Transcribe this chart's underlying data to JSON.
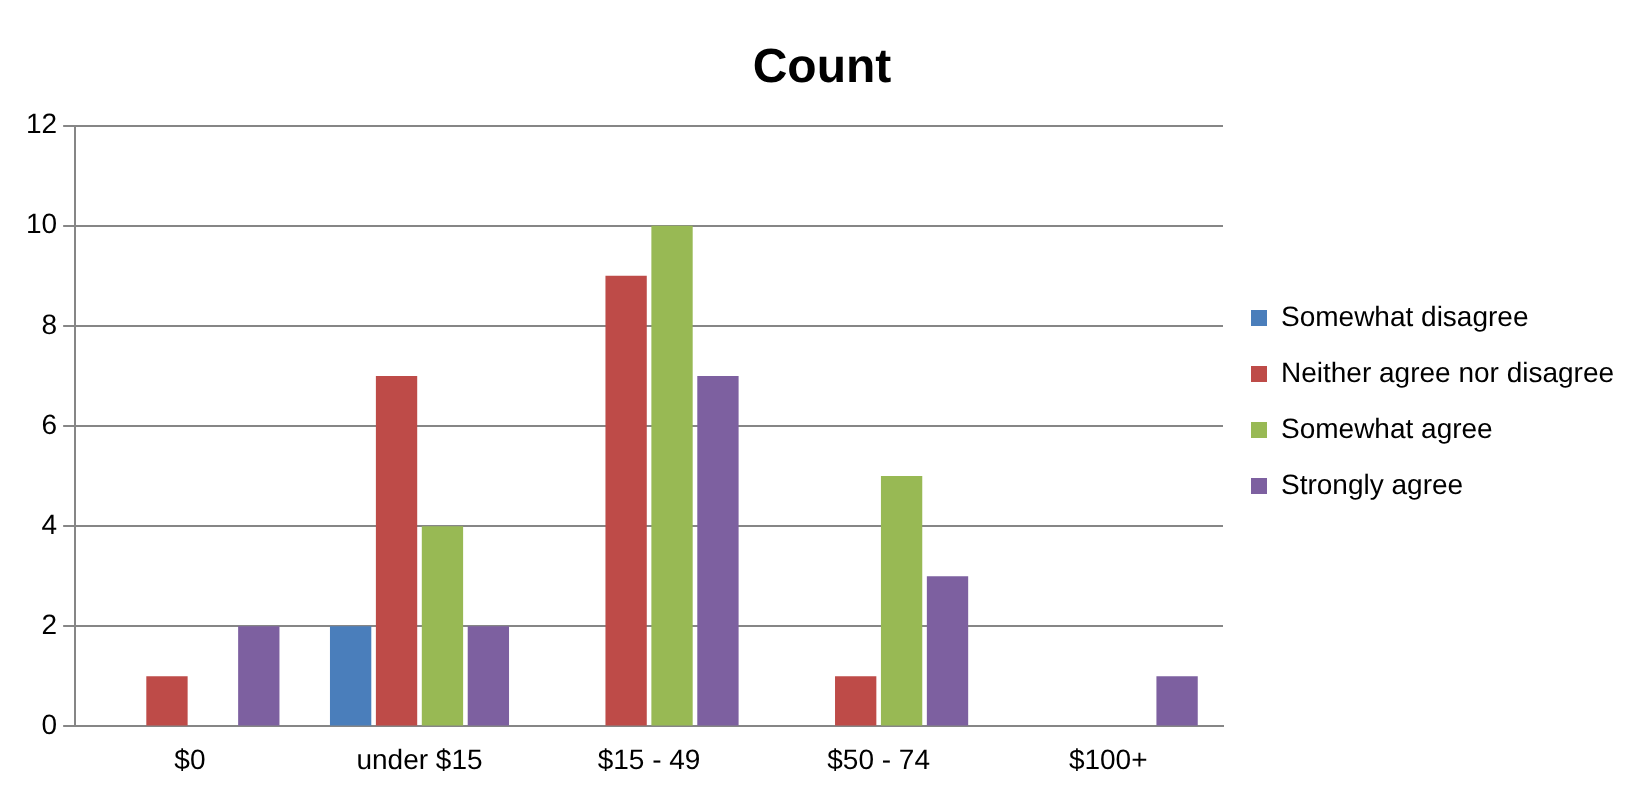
{
  "chart_data": {
    "type": "bar",
    "title": "Count",
    "categories": [
      "$0",
      "under $15",
      "$15 - 49",
      "$50 - 74",
      "$100+"
    ],
    "series": [
      {
        "name": "Somewhat disagree",
        "color": "#4a7ebb",
        "values": [
          0,
          2,
          0,
          0,
          0
        ]
      },
      {
        "name": "Neither agree nor disagree",
        "color": "#be4b48",
        "values": [
          1,
          7,
          9,
          1,
          0
        ]
      },
      {
        "name": "Somewhat agree",
        "color": "#98b954",
        "values": [
          0,
          4,
          10,
          5,
          0
        ]
      },
      {
        "name": "Strongly agree",
        "color": "#7d60a0",
        "values": [
          2,
          2,
          7,
          3,
          1
        ]
      }
    ],
    "ylim": [
      0,
      12
    ],
    "yticks": [
      0,
      2,
      4,
      6,
      8,
      10,
      12
    ],
    "grid": "y",
    "legend": "right"
  }
}
